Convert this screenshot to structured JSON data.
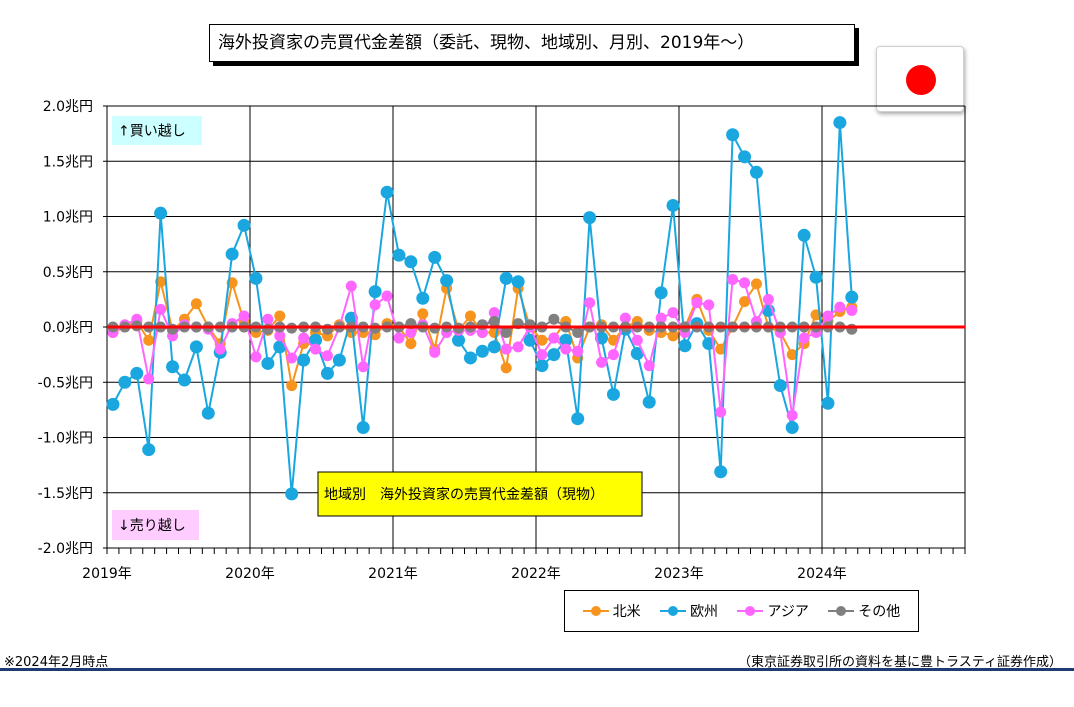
{
  "title": "海外投資家の売買代金差額（委託、現物、地域別、月別、2019年～）",
  "footnote_left": "※2024年2月時点",
  "footnote_right": "（東京証券取引所の資料を基に豊トラスティ証券作成）",
  "flag_icon": "japan-flag-icon",
  "colors": {
    "north_america": "#f7941d",
    "europe": "#1aa7e0",
    "asia": "#ff66ff",
    "other": "#808080",
    "zero_line": "#ff0000",
    "buy_label_bg": "#ccffff",
    "sell_label_bg": "#ffccff",
    "annotation_bg": "#ffff00"
  },
  "chart_data": {
    "type": "line",
    "subtitle": "地域別　海外投資家の売買代金差額（現物）",
    "annotations": {
      "buy": "↑買い越し",
      "sell": "↓売り越し"
    },
    "y_ticks": [
      "2.0兆円",
      "1.5兆円",
      "1.0兆円",
      "0.5兆円",
      "0.0兆円",
      "-0.5兆円",
      "-1.0兆円",
      "-1.5兆円",
      "-2.0兆円"
    ],
    "x_ticks": [
      "2019年",
      "2020年",
      "2021年",
      "2022年",
      "2023年",
      "2024年"
    ],
    "ylim": [
      -2.0,
      2.0
    ],
    "y_unit": "兆円",
    "x_start": "2019-01",
    "x_range_months": 72,
    "grid": true,
    "legend_position": "bottom-right",
    "series": [
      {
        "name": "北米",
        "color": "#f7941d",
        "values": [
          -0.05,
          0.0,
          0.05,
          -0.12,
          0.41,
          -0.03,
          0.07,
          0.21,
          0.0,
          -0.15,
          0.4,
          0.05,
          -0.05,
          -0.03,
          0.1,
          -0.53,
          -0.15,
          -0.05,
          -0.08,
          0.02,
          -0.05,
          -0.05,
          -0.07,
          0.03,
          0.0,
          -0.15,
          0.12,
          -0.2,
          0.35,
          -0.03,
          0.1,
          -0.05,
          -0.05,
          -0.37,
          0.35,
          0.0,
          -0.12,
          -0.1,
          0.05,
          -0.28,
          0.0,
          0.02,
          -0.12,
          0.0,
          0.05,
          -0.03,
          -0.05,
          -0.08,
          0.0,
          0.25,
          -0.03,
          -0.2,
          0.0,
          0.23,
          0.39,
          0.0,
          -0.05,
          -0.25,
          -0.15,
          0.11,
          0.05,
          0.14,
          0.18
        ]
      },
      {
        "name": "欧州",
        "color": "#1aa7e0",
        "values": [
          -0.7,
          -0.5,
          -0.42,
          -1.11,
          1.03,
          -0.36,
          -0.48,
          -0.18,
          -0.78,
          -0.23,
          0.66,
          0.92,
          0.44,
          -0.33,
          -0.18,
          -1.51,
          -0.3,
          -0.12,
          -0.42,
          -0.3,
          0.08,
          -0.91,
          0.32,
          1.22,
          0.65,
          0.59,
          0.26,
          0.63,
          0.42,
          -0.12,
          -0.28,
          -0.22,
          -0.18,
          0.44,
          0.41,
          -0.12,
          -0.35,
          -0.25,
          -0.12,
          -0.83,
          0.99,
          -0.1,
          -0.61,
          -0.02,
          -0.24,
          -0.68,
          0.31,
          1.1,
          -0.17,
          0.03,
          -0.15,
          -1.31,
          1.74,
          1.54,
          1.4,
          0.15,
          -0.53,
          -0.91,
          0.83,
          0.45,
          -0.69,
          1.85,
          0.27
        ]
      },
      {
        "name": "アジア",
        "color": "#ff66ff",
        "values": [
          -0.05,
          0.02,
          0.07,
          -0.47,
          0.16,
          -0.08,
          0.02,
          0.0,
          -0.02,
          -0.2,
          0.03,
          0.1,
          -0.27,
          0.07,
          -0.08,
          -0.28,
          -0.1,
          -0.2,
          -0.26,
          0.0,
          0.37,
          -0.36,
          0.2,
          0.28,
          -0.1,
          -0.05,
          0.02,
          -0.23,
          -0.05,
          -0.03,
          -0.03,
          -0.05,
          0.13,
          -0.2,
          -0.18,
          0.0,
          -0.25,
          -0.1,
          -0.2,
          -0.22,
          0.22,
          -0.32,
          -0.25,
          0.08,
          -0.12,
          -0.35,
          0.08,
          0.13,
          -0.05,
          0.22,
          0.2,
          -0.77,
          0.43,
          0.4,
          0.05,
          0.25,
          -0.05,
          -0.8,
          -0.1,
          -0.05,
          0.1,
          0.18,
          0.15
        ]
      },
      {
        "name": "その他",
        "color": "#808080",
        "values": [
          0.0,
          0.0,
          0.01,
          0.0,
          0.0,
          -0.02,
          0.0,
          0.0,
          0.0,
          0.0,
          0.0,
          0.0,
          0.0,
          -0.02,
          0.0,
          -0.01,
          0.0,
          0.0,
          -0.02,
          0.0,
          0.0,
          0.0,
          -0.01,
          0.0,
          0.0,
          0.03,
          0.0,
          -0.01,
          0.0,
          -0.01,
          0.0,
          0.02,
          0.05,
          -0.05,
          0.03,
          0.02,
          0.0,
          0.07,
          0.0,
          -0.05,
          0.0,
          0.0,
          0.0,
          0.0,
          0.0,
          0.0,
          0.0,
          0.0,
          0.0,
          0.0,
          0.0,
          0.0,
          0.0,
          0.0,
          0.0,
          0.0,
          0.0,
          0.0,
          0.0,
          0.0,
          0.0,
          0.0,
          -0.02
        ]
      }
    ]
  }
}
